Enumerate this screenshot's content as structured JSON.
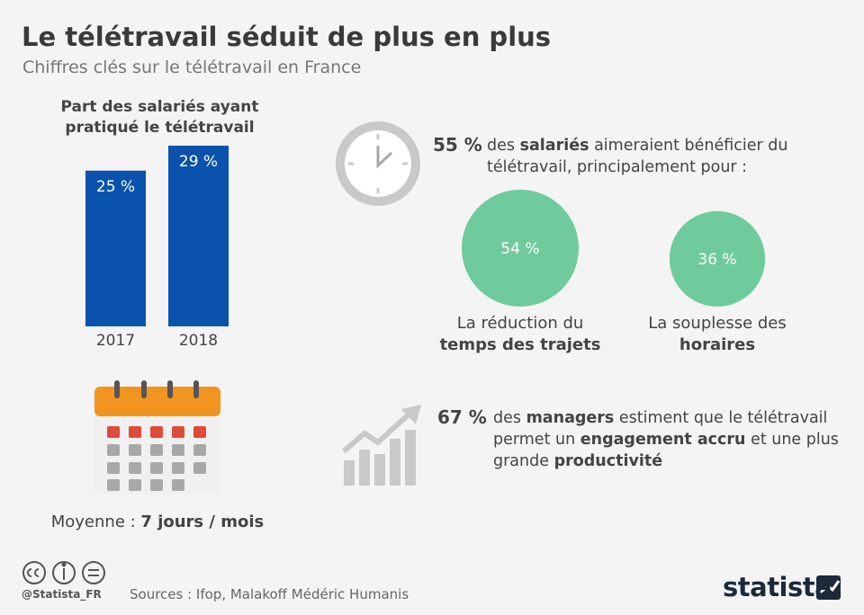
{
  "header": {
    "title": "Le télétravail séduit de plus en plus",
    "subtitle": "Chiffres clés sur le télétravail en France"
  },
  "chart_data": [
    {
      "type": "bar",
      "title": "Part des salariés ayant pratiqué le télétravail",
      "categories": [
        "2017",
        "2018"
      ],
      "values": [
        25,
        29
      ],
      "value_labels": [
        "25 %",
        "29 %"
      ],
      "color": "#0b52ad"
    },
    {
      "type": "bubble",
      "labels": [
        [
          {
            "text": "La réduction du "
          },
          {
            "text": "temps des trajets",
            "bold": true
          }
        ],
        [
          {
            "text": "La souplesse des "
          },
          {
            "text": "horaires",
            "bold": true
          }
        ]
      ],
      "values": [
        54,
        36
      ],
      "value_labels": [
        "54 %",
        "36 %"
      ],
      "color": "#6fcb9c"
    }
  ],
  "stats": [
    {
      "value_label": "55 %",
      "segments": [
        {
          "text": "des "
        },
        {
          "text": "salariés",
          "bold": true
        },
        {
          "text": " aimeraient bénéficier du télétravail, principalement pour :"
        }
      ]
    },
    {
      "value_label": "67 %",
      "segments": [
        {
          "text": "des "
        },
        {
          "text": "managers",
          "bold": true
        },
        {
          "text": " estiment que le télétravail permet un "
        },
        {
          "text": "engagement accru",
          "bold": true
        },
        {
          "text": " et une plus grande "
        },
        {
          "text": "productivité",
          "bold": true
        }
      ]
    }
  ],
  "calendar": {
    "segments": [
      {
        "text": "Moyenne : "
      },
      {
        "text": "7 jours / mois",
        "bold": true
      }
    ]
  },
  "footer": {
    "handle": "@Statista_FR",
    "source": "Sources : Ifop, Malakoff Médéric Humanis",
    "brand": "statista"
  }
}
